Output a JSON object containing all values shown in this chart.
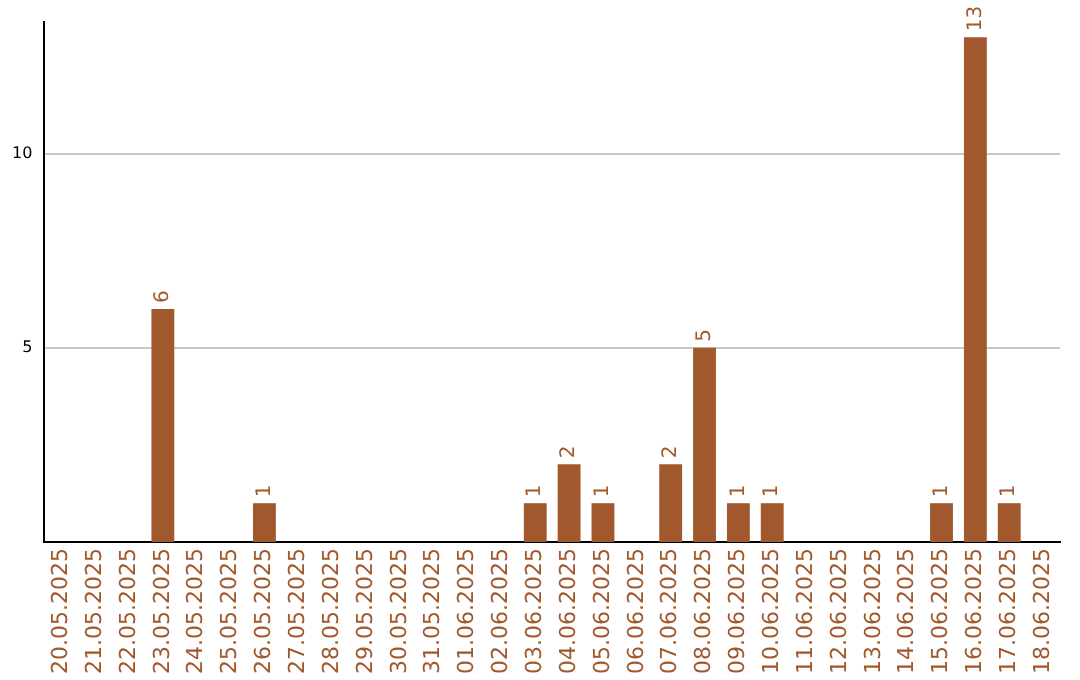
{
  "chart_data": {
    "type": "bar",
    "categories": [
      "20.05.2025",
      "21.05.2025",
      "22.05.2025",
      "23.05.2025",
      "24.05.2025",
      "25.05.2025",
      "26.05.2025",
      "27.05.2025",
      "28.05.2025",
      "29.05.2025",
      "30.05.2025",
      "31.05.2025",
      "01.06.2025",
      "02.06.2025",
      "03.06.2025",
      "04.06.2025",
      "05.06.2025",
      "06.06.2025",
      "07.06.2025",
      "08.06.2025",
      "09.06.2025",
      "10.06.2025",
      "11.06.2025",
      "12.06.2025",
      "13.06.2025",
      "14.06.2025",
      "15.06.2025",
      "16.06.2025",
      "17.06.2025",
      "18.06.2025"
    ],
    "values": [
      0,
      0,
      0,
      6,
      0,
      0,
      1,
      0,
      0,
      0,
      0,
      0,
      0,
      0,
      1,
      2,
      1,
      0,
      2,
      5,
      1,
      1,
      0,
      0,
      0,
      0,
      1,
      13,
      1,
      0
    ],
    "value_labels": [
      null,
      null,
      null,
      "6",
      null,
      null,
      "1",
      null,
      null,
      null,
      null,
      null,
      null,
      null,
      "1",
      "2",
      "1",
      null,
      "2",
      "5",
      "1",
      "1",
      null,
      null,
      null,
      null,
      "1",
      "13",
      "1",
      null
    ],
    "color": "#a0582c",
    "ylim": [
      0,
      13.4
    ],
    "yticks": [
      5,
      10
    ],
    "grid": "y"
  }
}
